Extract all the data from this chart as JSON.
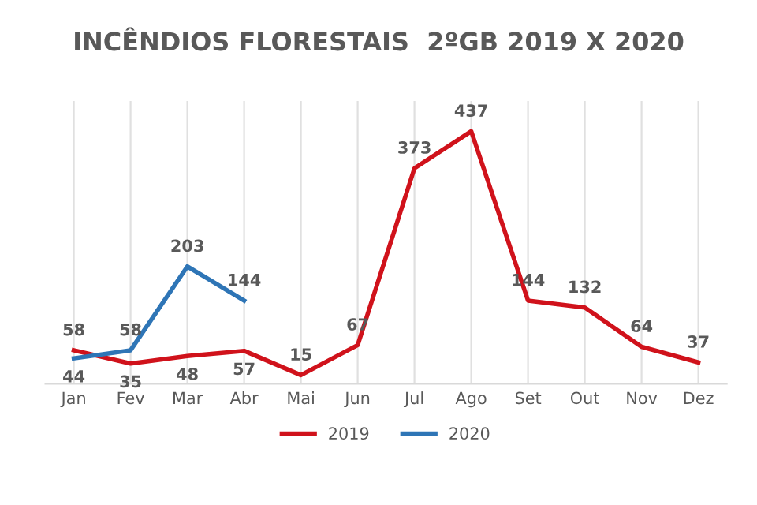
{
  "chart_data": {
    "type": "line",
    "title": "INCÊNDIOS FLORESTAIS  2ºGB 2019 X 2020",
    "categories": [
      "Jan",
      "Fev",
      "Mar",
      "Abr",
      "Mai",
      "Jun",
      "Jul",
      "Ago",
      "Set",
      "Out",
      "Nov",
      "Dez"
    ],
    "series": [
      {
        "name": "2019",
        "color": "#d0121b",
        "values": [
          58,
          35,
          48,
          57,
          15,
          67,
          373,
          437,
          144,
          132,
          64,
          37
        ]
      },
      {
        "name": "2020",
        "color": "#2e75b6",
        "values": [
          44,
          58,
          203,
          144,
          null,
          null,
          null,
          null,
          null,
          null,
          null,
          null
        ]
      }
    ],
    "data_labels": true,
    "grid": "x",
    "legend": "bottom",
    "marker": "none",
    "line_style": "solid"
  }
}
